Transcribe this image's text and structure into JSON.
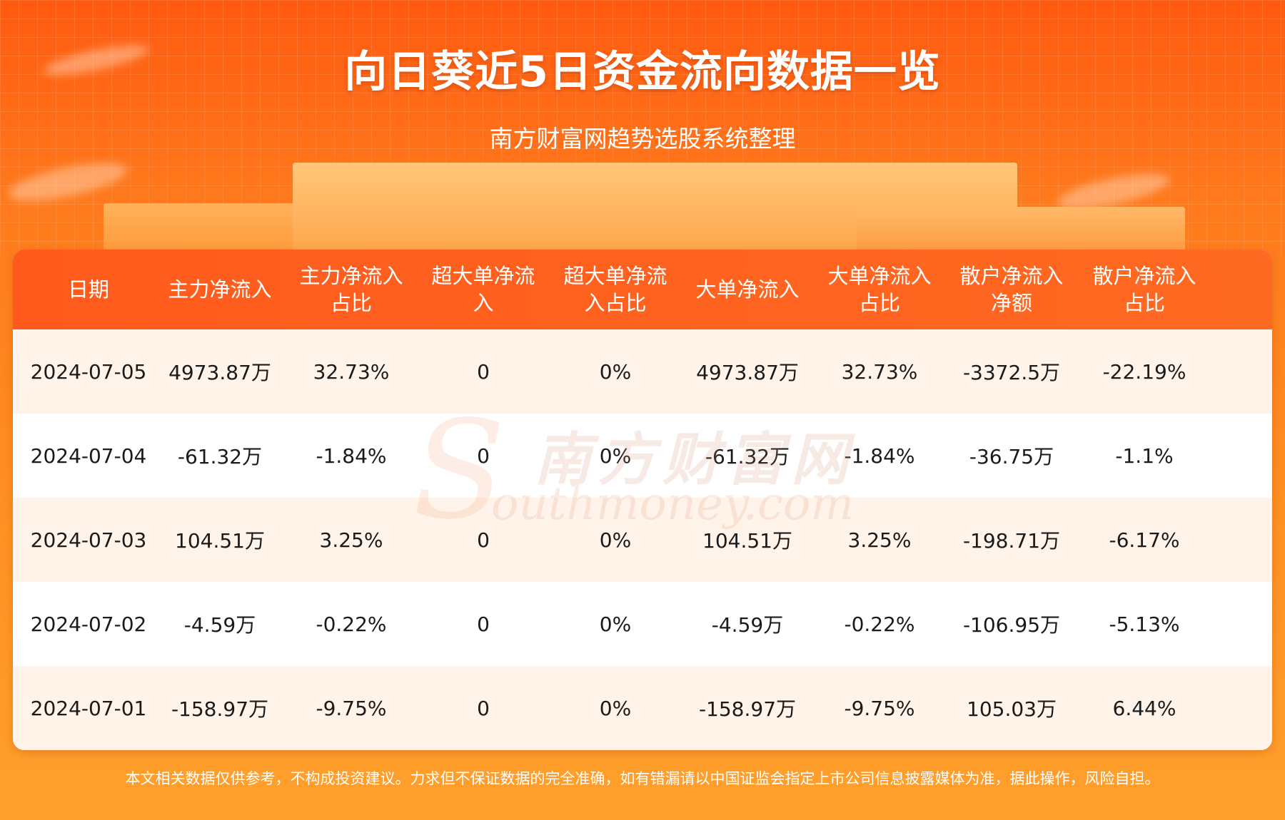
{
  "header": {
    "title": "向日葵近5日资金流向数据一览",
    "subtitle": "南方财富网趋势选股系统整理"
  },
  "table": {
    "columns": [
      "日期",
      "主力净流入",
      "主力净流入\n占比",
      "超大单净流\n入",
      "超大单净流\n入占比",
      "大单净流入",
      "大单净流入\n占比",
      "散户净流入\n净额",
      "散户净流入\n占比"
    ],
    "rows": [
      [
        "2024-07-05",
        "4973.87万",
        "32.73%",
        "0",
        "0%",
        "4973.87万",
        "32.73%",
        "-3372.5万",
        "-22.19%"
      ],
      [
        "2024-07-04",
        "-61.32万",
        "-1.84%",
        "0",
        "0%",
        "-61.32万",
        "-1.84%",
        "-36.75万",
        "-1.1%"
      ],
      [
        "2024-07-03",
        "104.51万",
        "3.25%",
        "0",
        "0%",
        "104.51万",
        "3.25%",
        "-198.71万",
        "-6.17%"
      ],
      [
        "2024-07-02",
        "-4.59万",
        "-0.22%",
        "0",
        "0%",
        "-4.59万",
        "-0.22%",
        "-106.95万",
        "-5.13%"
      ],
      [
        "2024-07-01",
        "-158.97万",
        "-9.75%",
        "0",
        "0%",
        "-158.97万",
        "-9.75%",
        "105.03万",
        "6.44%"
      ]
    ]
  },
  "watermark": {
    "chinese": "南方财富网",
    "english": "outhmoney.com",
    "letter": "S"
  },
  "footer": {
    "disclaimer": "本文相关数据仅供参考，不构成投资建议。力求但不保证数据的完全准确，如有错漏请以中国证监会指定上市公司信息披露媒体为准，据此操作，风险自担。"
  },
  "colors": {
    "header_bg": "#ff5a1c",
    "row_alt": "#fff3ea",
    "page_bg_top": "#ff5a10",
    "page_bg_bottom": "#ffa02c"
  }
}
